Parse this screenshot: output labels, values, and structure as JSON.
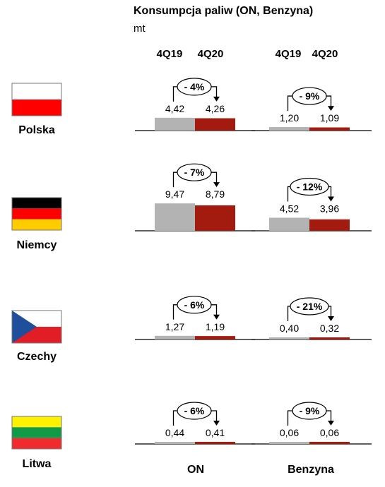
{
  "title": "Konsumpcja paliw (ON, Benzyna)",
  "unit": "mt",
  "colors": {
    "prev": "#b3b3b3",
    "curr": "#a31a0e",
    "axis": "#000000"
  },
  "chart_data": {
    "type": "bar",
    "periods": [
      "4Q19",
      "4Q20"
    ],
    "groups": [
      "ON",
      "Benzyna"
    ],
    "countries": [
      {
        "name": "Polska",
        "flag": "poland-flag-icon",
        "ON": {
          "values": [
            4.42,
            4.26
          ],
          "labels": [
            "4,42",
            "4,26"
          ],
          "change": "- 4%"
        },
        "Benzyna": {
          "values": [
            1.2,
            1.09
          ],
          "labels": [
            "1,20",
            "1,09"
          ],
          "change": "- 9%"
        }
      },
      {
        "name": "Niemcy",
        "flag": "germany-flag-icon",
        "ON": {
          "values": [
            9.47,
            8.79
          ],
          "labels": [
            "9,47",
            "8,79"
          ],
          "change": "- 7%"
        },
        "Benzyna": {
          "values": [
            4.52,
            3.96
          ],
          "labels": [
            "4,52",
            "3,96"
          ],
          "change": "- 12%"
        }
      },
      {
        "name": "Czechy",
        "flag": "czechia-flag-icon",
        "ON": {
          "values": [
            1.27,
            1.19
          ],
          "labels": [
            "1,27",
            "1,19"
          ],
          "change": "- 6%"
        },
        "Benzyna": {
          "values": [
            0.4,
            0.32
          ],
          "labels": [
            "0,40",
            "0,32"
          ],
          "change": "- 21%"
        }
      },
      {
        "name": "Litwa",
        "flag": "lithuania-flag-icon",
        "ON": {
          "values": [
            0.44,
            0.41
          ],
          "labels": [
            "0,44",
            "0,41"
          ],
          "change": "- 6%"
        },
        "Benzyna": {
          "values": [
            0.06,
            0.06
          ],
          "labels": [
            "0,06",
            "0,06"
          ],
          "change": "- 9%"
        }
      }
    ]
  }
}
